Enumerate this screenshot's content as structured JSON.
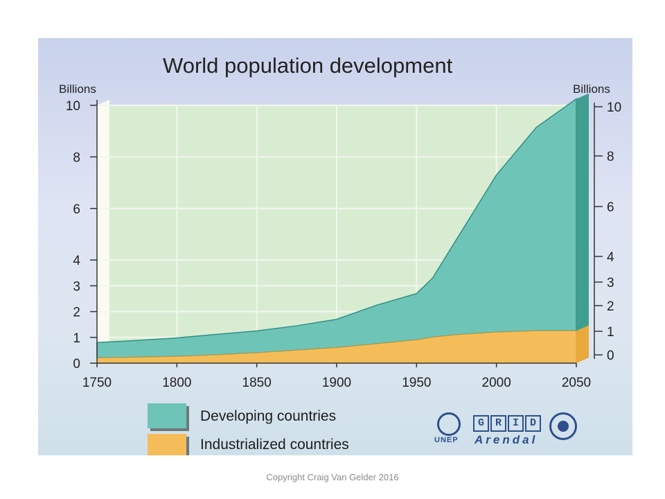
{
  "chart_data": {
    "type": "area",
    "title": "World population development",
    "ylabel_left": "Billions",
    "ylabel_right": "Billions",
    "x": [
      1750,
      1775,
      1800,
      1825,
      1850,
      1875,
      1900,
      1925,
      1950,
      1960,
      1975,
      2000,
      2025,
      2050
    ],
    "xticks": [
      "1750",
      "1800",
      "1850",
      "1900",
      "1950",
      "2000",
      "2050"
    ],
    "yticks": [
      "0",
      "1",
      "2",
      "3",
      "4",
      "6",
      "8",
      "10"
    ],
    "ylim": [
      0,
      10
    ],
    "series": [
      {
        "name": "Industrialized countries",
        "color": "#f5bd5a",
        "values": [
          0.2,
          0.23,
          0.26,
          0.32,
          0.4,
          0.5,
          0.6,
          0.75,
          0.9,
          1.0,
          1.1,
          1.2,
          1.25,
          1.25
        ]
      },
      {
        "name": "Developing countries",
        "color": "#6fc4b8",
        "values": [
          0.6,
          0.65,
          0.72,
          0.8,
          0.85,
          0.95,
          1.1,
          1.5,
          1.8,
          2.3,
          3.7,
          6.1,
          7.9,
          9.0
        ]
      }
    ],
    "grid": true,
    "legend": "bottom-left"
  },
  "legend": {
    "developing_label": "Developing countries",
    "industrialized_label": "Industrialized countries"
  },
  "logos": {
    "unep": "UNEP",
    "grid_letters": [
      "G",
      "R",
      "I",
      "D"
    ],
    "arendal": "Arendal"
  },
  "footer": "Copyright Craig Van Gelder 2016"
}
